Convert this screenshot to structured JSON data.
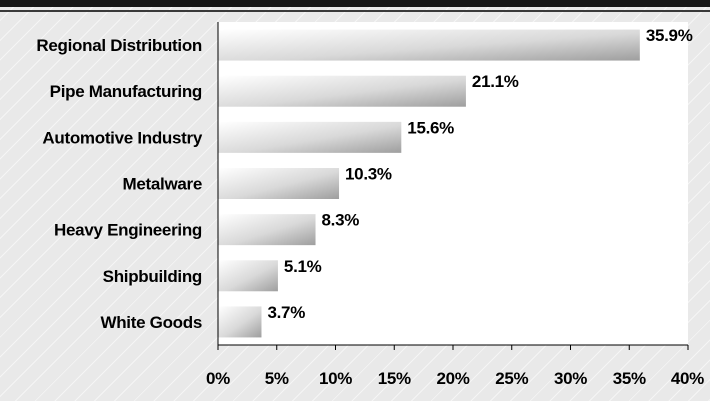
{
  "chart_data": {
    "type": "bar",
    "orientation": "horizontal",
    "categories": [
      "Regional Distribution",
      "Pipe Manufacturing",
      "Automotive Industry",
      "Metalware",
      "Heavy Engineering",
      "Shipbuilding",
      "White Goods"
    ],
    "values": [
      35.9,
      21.1,
      15.6,
      10.3,
      8.3,
      5.1,
      3.7
    ],
    "data_labels": [
      "35.9%",
      "21.1%",
      "15.6%",
      "10.3%",
      "8.3%",
      "5.1%",
      "3.7%"
    ],
    "x_ticks": [
      0,
      5,
      10,
      15,
      20,
      25,
      30,
      35,
      40
    ],
    "x_tick_labels": [
      "0%",
      "5%",
      "10%",
      "15%",
      "20%",
      "25%",
      "30%",
      "35%",
      "40%"
    ],
    "xlim": [
      0,
      40
    ],
    "title": "",
    "xlabel": "",
    "ylabel": "",
    "grid": false,
    "legend": "none",
    "colors": {
      "bar_light": "#ffffff",
      "bar_dark": "#9e9e9e",
      "plot_background": "#ffffff",
      "page_background": "#e9e9e9",
      "top_band": "#161616"
    }
  }
}
